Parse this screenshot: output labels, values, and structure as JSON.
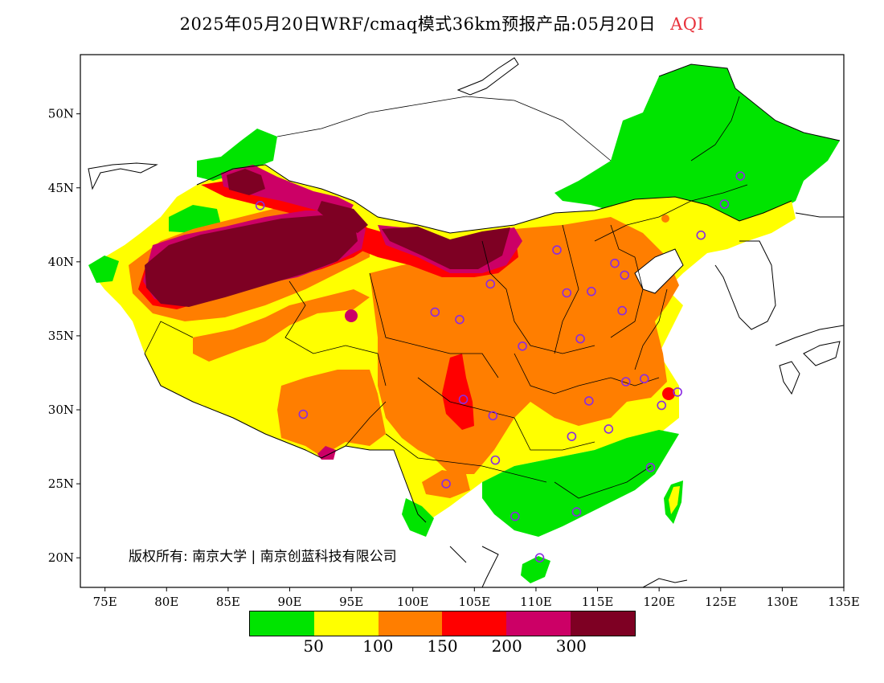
{
  "title": {
    "text": "2025年05月20日WRF/cmaq模式36km预报产品:05月20日",
    "metric": "AQI"
  },
  "copyright": "版权所有: 南京大学 | 南京创蓝科技有限公司",
  "axes": {
    "x_ticks": [
      "75E",
      "80E",
      "85E",
      "90E",
      "95E",
      "100E",
      "105E",
      "110E",
      "115E",
      "120E",
      "125E",
      "130E",
      "135E"
    ],
    "y_ticks": [
      "50N",
      "45N",
      "40N",
      "35N",
      "30N",
      "25N",
      "20N"
    ]
  },
  "legend": {
    "colors": [
      "#00e400",
      "#ffff00",
      "#ff7e00",
      "#ff0000",
      "#cc0066",
      "#7e0023"
    ],
    "labels": [
      "50",
      "100",
      "150",
      "200",
      "300"
    ]
  },
  "station_color": "#8a2be2",
  "stations": [
    {
      "lon": 87.6,
      "lat": 43.8
    },
    {
      "lon": 91.1,
      "lat": 29.7
    },
    {
      "lon": 101.8,
      "lat": 36.6
    },
    {
      "lon": 103.8,
      "lat": 36.1
    },
    {
      "lon": 106.3,
      "lat": 38.5
    },
    {
      "lon": 111.7,
      "lat": 40.8
    },
    {
      "lon": 112.5,
      "lat": 37.9
    },
    {
      "lon": 114.5,
      "lat": 38.0
    },
    {
      "lon": 116.4,
      "lat": 39.9
    },
    {
      "lon": 117.2,
      "lat": 39.1
    },
    {
      "lon": 117.0,
      "lat": 36.7
    },
    {
      "lon": 113.6,
      "lat": 34.8
    },
    {
      "lon": 108.9,
      "lat": 34.3
    },
    {
      "lon": 104.1,
      "lat": 30.7
    },
    {
      "lon": 106.5,
      "lat": 29.6
    },
    {
      "lon": 106.7,
      "lat": 26.6
    },
    {
      "lon": 102.7,
      "lat": 25.0
    },
    {
      "lon": 108.3,
      "lat": 22.8
    },
    {
      "lon": 113.3,
      "lat": 23.1
    },
    {
      "lon": 110.3,
      "lat": 20.0
    },
    {
      "lon": 112.9,
      "lat": 28.2
    },
    {
      "lon": 114.3,
      "lat": 30.6
    },
    {
      "lon": 115.9,
      "lat": 28.7
    },
    {
      "lon": 117.3,
      "lat": 31.9
    },
    {
      "lon": 118.8,
      "lat": 32.1
    },
    {
      "lon": 120.2,
      "lat": 30.3
    },
    {
      "lon": 121.5,
      "lat": 31.2
    },
    {
      "lon": 119.3,
      "lat": 26.1
    },
    {
      "lon": 123.4,
      "lat": 41.8
    },
    {
      "lon": 125.3,
      "lat": 43.9
    },
    {
      "lon": 126.6,
      "lat": 45.8
    }
  ]
}
